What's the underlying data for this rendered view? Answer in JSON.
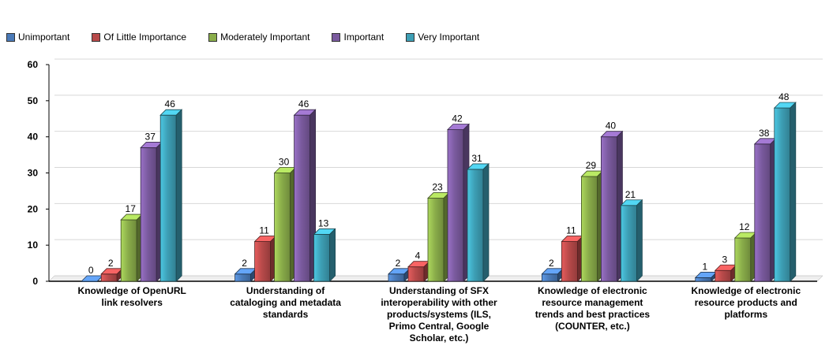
{
  "chart_data": {
    "type": "bar",
    "title": "",
    "xlabel": "",
    "ylabel": "",
    "ylim": [
      0,
      60
    ],
    "yticks": [
      0,
      10,
      20,
      30,
      40,
      50,
      60
    ],
    "grid": true,
    "legend_position": "top-left",
    "categories": [
      [
        "Knowledge of OpenURL",
        "link resolvers"
      ],
      [
        "Understanding of",
        "cataloging and metadata",
        "standards"
      ],
      [
        "Understanding of SFX",
        "interoperability with other",
        "products/systems (ILS,",
        "Primo Central, Google",
        "Scholar, etc.)"
      ],
      [
        "Knowledge of electronic",
        "resource management",
        "trends and best practices",
        "(COUNTER, etc.)"
      ],
      [
        "Knowledge of electronic",
        "resource products and",
        "platforms"
      ]
    ],
    "series": [
      {
        "name": "Unimportant",
        "color": "#4a7ab8",
        "values": [
          0,
          2,
          2,
          2,
          1
        ]
      },
      {
        "name": "Of Little Importance",
        "color": "#b84a4a",
        "values": [
          2,
          11,
          4,
          11,
          3
        ]
      },
      {
        "name": "Moderately Important",
        "color": "#8aad4a",
        "values": [
          17,
          30,
          23,
          29,
          12
        ]
      },
      {
        "name": "Important",
        "color": "#7a5a9e",
        "values": [
          37,
          46,
          42,
          40,
          38
        ]
      },
      {
        "name": "Very Important",
        "color": "#3d9fb5",
        "values": [
          46,
          13,
          31,
          21,
          48
        ]
      }
    ]
  }
}
